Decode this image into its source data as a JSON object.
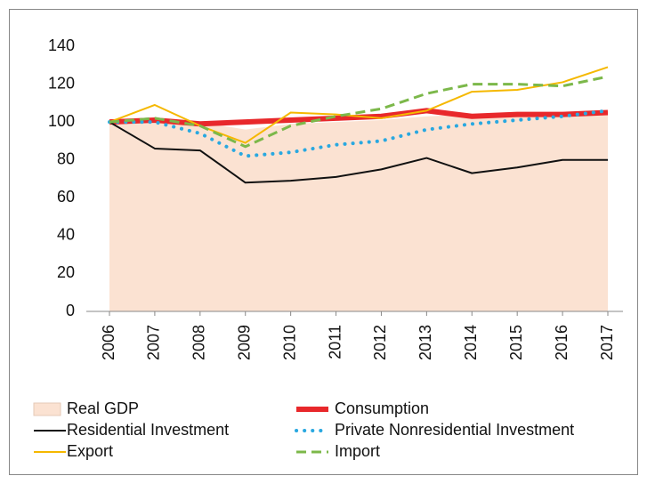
{
  "chart_data": {
    "type": "line",
    "categories": [
      "2006",
      "2007",
      "2008",
      "2009",
      "2010",
      "2011",
      "2012",
      "2013",
      "2014",
      "2015",
      "2016",
      "2017"
    ],
    "ylim": [
      0,
      140
    ],
    "yticks": [
      0,
      20,
      40,
      60,
      80,
      100,
      120,
      140
    ],
    "grid": false,
    "series": [
      {
        "name": "Real GDP",
        "color": "#fbe2d2",
        "style": "area",
        "values": [
          100,
          101,
          100,
          96,
          99,
          100,
          101,
          103,
          104,
          104,
          105,
          106
        ]
      },
      {
        "name": "Consumption",
        "color": "#e8282b",
        "style": "thick",
        "values": [
          100,
          101,
          99,
          100,
          101,
          102,
          103,
          106,
          103,
          104,
          104,
          105
        ]
      },
      {
        "name": "Residential Investment",
        "color": "#111111",
        "style": "solid",
        "values": [
          100,
          86,
          85,
          68,
          69,
          71,
          75,
          81,
          73,
          76,
          80,
          80
        ]
      },
      {
        "name": "Private Nonresidential Investment",
        "color": "#29a8e0",
        "style": "dotted",
        "values": [
          100,
          100,
          94,
          82,
          84,
          88,
          90,
          96,
          99,
          101,
          103,
          106
        ]
      },
      {
        "name": "Export",
        "color": "#f5b800",
        "style": "solid",
        "values": [
          100,
          109,
          98,
          89,
          105,
          104,
          102,
          106,
          116,
          117,
          121,
          129
        ]
      },
      {
        "name": "Import",
        "color": "#7cb84a",
        "style": "dashed",
        "values": [
          100,
          102,
          98,
          87,
          98,
          103,
          107,
          115,
          120,
          120,
          119,
          124
        ]
      }
    ]
  }
}
